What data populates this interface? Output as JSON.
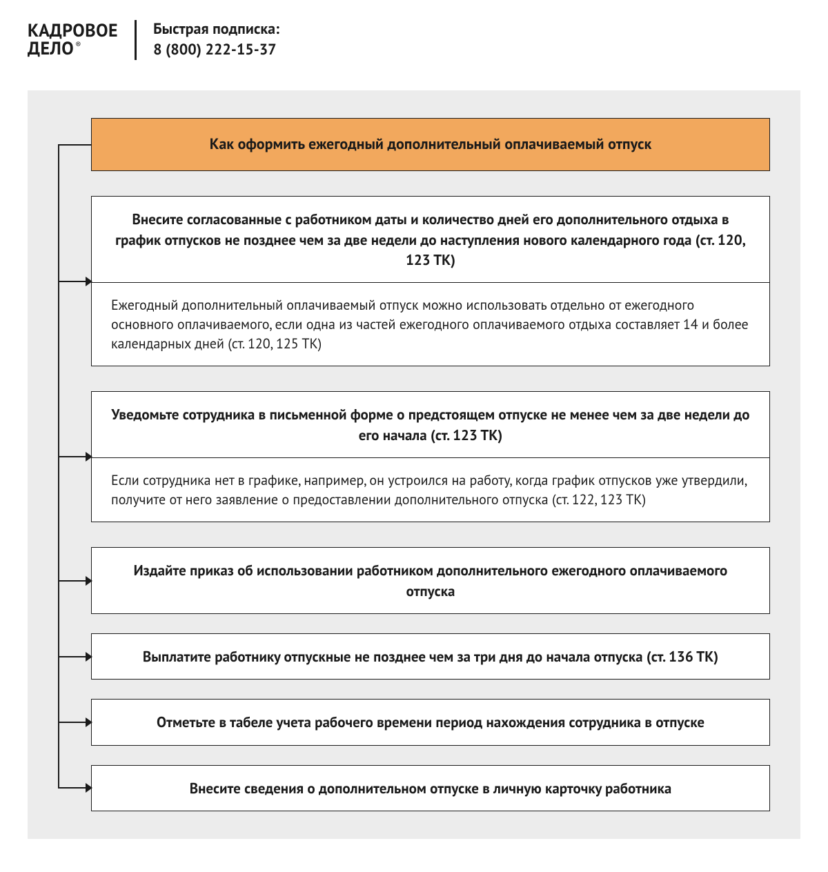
{
  "header": {
    "logo_line1": "КАДРОВОЕ",
    "logo_line2": "ДЕЛО",
    "logo_reg": "®",
    "subscribe_label": "Быстрая подписка:",
    "subscribe_phone": "8 (800) 222-15-37"
  },
  "diagram": {
    "type": "flowchart",
    "background_color": "#ececec",
    "box_border_color": "#1a1a1a",
    "box_bg_color": "#ffffff",
    "title_bg_color": "#f2a85d",
    "spine_color": "#1a1a1a",
    "arrow_color": "#1a1a1a",
    "head_fontsize": 21,
    "body_fontsize": 20,
    "head_fontweight": 700,
    "title": "Как оформить ежегодный дополнительный оплачиваемый отпуск",
    "steps": [
      {
        "head": "Внесите согласованные с работником даты и количество дней его дополнительного отдыха в график отпусков не позднее чем за две недели до наступления нового календарного года (ст. 120, 123 ТК)",
        "body": "Ежегодный дополнительный оплачиваемый отпуск можно использовать отдельно от ежегодного основного оплачиваемого, если одна из частей ежегодного оплачивае­мого отдыха составляет 14 и более календарных дней (ст. 120, 125 ТК)"
      },
      {
        "head": "Уведомьте сотрудника в письменной форме о предстоящем отпуске не менее чем за две недели до его начала (ст. 123 ТК)",
        "body": "Если сотрудника нет в графике, например, он устроился на работу, когда график отпу­сков уже утвердили, получите от него заявление о предоставлении дополнительного отпуска (ст. 122, 123 ТК)"
      },
      {
        "head": "Издайте приказ об использовании работником дополнительного ежегодного оплачиваемого отпуска",
        "body": null
      },
      {
        "head": "Выплатите работнику отпускные не позднее чем за три дня до начала отпуска (ст. 136 ТК)",
        "body": null
      },
      {
        "head": "Отметьте в табеле учета рабочего времени период нахождения сотрудника в отпуске",
        "body": null
      },
      {
        "head": "Внесите сведения о дополнительном отпуске в личную карточку работника",
        "body": null
      }
    ]
  }
}
